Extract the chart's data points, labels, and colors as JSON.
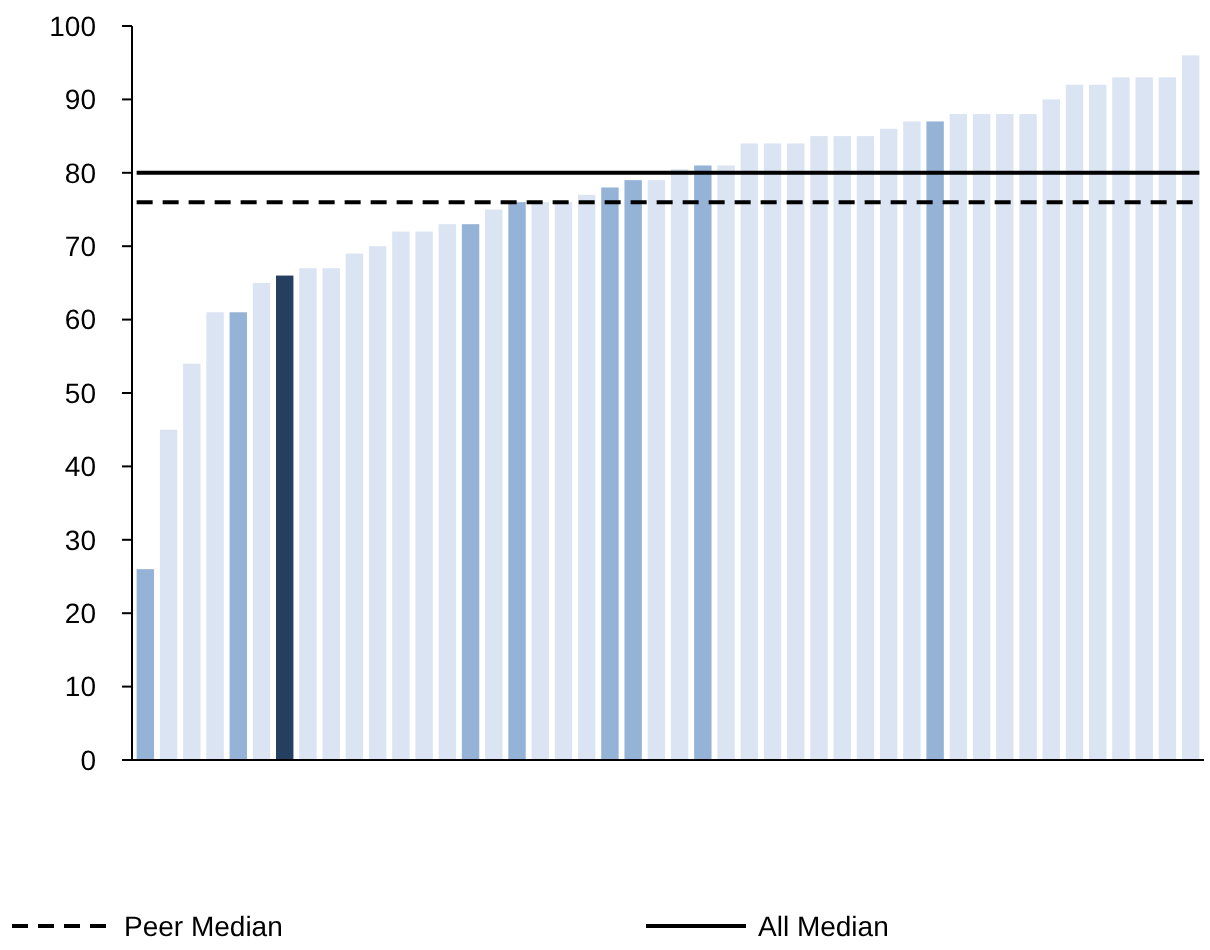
{
  "chart_data": {
    "type": "bar",
    "categories": [
      null,
      null,
      null,
      null,
      null,
      null,
      null,
      null,
      null,
      null,
      null,
      null,
      null,
      null,
      null,
      null,
      null,
      null,
      null,
      null,
      null,
      null,
      null,
      null,
      null,
      null,
      null,
      null,
      null,
      null,
      null,
      null,
      null,
      null,
      null,
      null,
      null,
      null,
      null,
      null,
      null,
      null,
      null,
      null,
      null,
      null
    ],
    "values": [
      26,
      45,
      54,
      61,
      61,
      65,
      66,
      67,
      67,
      69,
      70,
      72,
      72,
      73,
      73,
      75,
      76,
      76,
      76,
      77,
      78,
      79,
      79,
      80.5,
      81,
      81,
      84,
      84,
      84,
      85,
      85,
      85,
      86,
      87,
      87,
      88,
      88,
      88,
      88,
      90,
      92,
      92,
      93,
      93,
      93,
      96
    ],
    "colors": [
      "#95b3d7",
      "#dbe4f2",
      "#dbe4f2",
      "#dbe4f2",
      "#95b3d7",
      "#dbe4f2",
      "#243f60",
      "#dbe4f2",
      "#dbe4f2",
      "#dbe4f2",
      "#dbe4f2",
      "#dbe4f2",
      "#dbe4f2",
      "#dbe4f2",
      "#95b3d7",
      "#dbe4f2",
      "#95b3d7",
      "#dbe4f2",
      "#dbe4f2",
      "#dbe4f2",
      "#95b3d7",
      "#95b3d7",
      "#dbe4f2",
      "#dbe4f2",
      "#95b3d7",
      "#dbe4f2",
      "#dbe4f2",
      "#dbe4f2",
      "#dbe4f2",
      "#dbe4f2",
      "#dbe4f2",
      "#dbe4f2",
      "#dbe4f2",
      "#dbe4f2",
      "#95b3d7",
      "#dbe4f2",
      "#dbe4f2",
      "#dbe4f2",
      "#dbe4f2",
      "#dbe4f2",
      "#dbe4f2",
      "#dbe4f2",
      "#dbe4f2",
      "#dbe4f2",
      "#dbe4f2",
      "#dbe4f2"
    ],
    "ylim": [
      0,
      100
    ],
    "yticks": [
      0,
      10,
      20,
      30,
      40,
      50,
      60,
      70,
      80,
      90,
      100
    ],
    "ref_lines": [
      {
        "axis": "y",
        "value": 76,
        "label": "Peer Median",
        "color": "#000000",
        "line_style": "dashed"
      },
      {
        "axis": "y",
        "value": 80,
        "label": "All Median",
        "color": "#000000",
        "line_style": "solid"
      }
    ],
    "legend": "bottom"
  }
}
